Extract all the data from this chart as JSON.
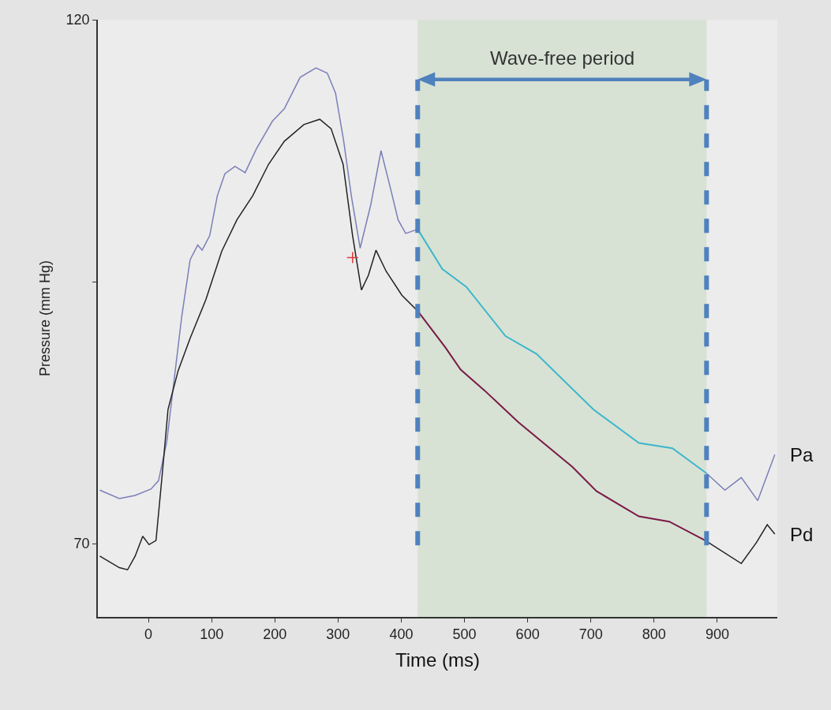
{
  "chart_data": {
    "type": "line",
    "xlabel": "Time (ms)",
    "ylabel": "Pressure (mm Hg)",
    "xlim": [
      -80,
      995
    ],
    "ylim": [
      63,
      120
    ],
    "xticks": [
      0,
      100,
      200,
      300,
      400,
      500,
      600,
      700,
      800,
      900
    ],
    "yticks": [
      70,
      {
        "value": 95,
        "label": null
      },
      120
    ],
    "grid": false,
    "legend": false,
    "line_style": "solid",
    "marker": "none",
    "series": [
      {
        "name": "Pa",
        "color": "#7b7fb8",
        "x": [
          -77,
          -46,
          -21,
          4,
          16,
          29,
          41,
          53,
          66,
          78,
          85,
          97,
          109,
          121,
          137,
          153,
          171,
          196,
          215,
          240,
          265,
          283,
          296,
          309,
          321,
          335,
          352,
          368,
          383,
          395,
          407,
          426,
          465,
          503,
          565,
          614,
          704,
          776,
          829,
          883,
          912,
          938,
          964,
          991
        ],
        "values": [
          75.1,
          74.3,
          74.6,
          75.2,
          76.0,
          79.7,
          85.8,
          91.8,
          97.1,
          98.5,
          98.0,
          99.4,
          103.2,
          105.3,
          106.0,
          105.4,
          107.7,
          110.3,
          111.5,
          114.5,
          115.4,
          114.9,
          113.0,
          108.4,
          103.2,
          98.2,
          102.4,
          107.5,
          103.9,
          100.9,
          99.6,
          100.0,
          null,
          null,
          null,
          null,
          null,
          null,
          null,
          76.7,
          75.1,
          76.3,
          74.1,
          78.5
        ]
      },
      {
        "color": "#3cb6cc",
        "x": [
          426,
          465,
          503,
          565,
          614,
          704,
          776,
          829,
          883
        ],
        "values": [
          100.0,
          96.2,
          94.5,
          89.8,
          88.1,
          82.8,
          79.6,
          79.1,
          76.7
        ]
      },
      {
        "name": "Pd",
        "color": "#222222",
        "x": [
          -77,
          -46,
          -33,
          -21,
          -9,
          1,
          12,
          22,
          31,
          47,
          66,
          91,
          116,
          140,
          165,
          190,
          215,
          246,
          271,
          289,
          308,
          323,
          331,
          337,
          348,
          360,
          376,
          401,
          426,
          470,
          494,
          532,
          585,
          671,
          709,
          776,
          824,
          881,
          938,
          962,
          979,
          991
        ],
        "values": [
          68.8,
          67.7,
          67.5,
          68.8,
          70.7,
          69.9,
          70.3,
          76.7,
          82.8,
          86.5,
          89.6,
          93.3,
          97.9,
          100.9,
          103.2,
          106.2,
          108.4,
          110.0,
          110.5,
          109.6,
          106.2,
          99.4,
          96.4,
          94.2,
          95.6,
          98.0,
          96.0,
          93.7,
          92.2,
          null,
          null,
          null,
          null,
          null,
          null,
          null,
          null,
          70.3,
          68.1,
          70.1,
          71.8,
          70.9
        ]
      },
      {
        "color": "#7a1a48",
        "x": [
          426,
          470,
          494,
          532,
          585,
          671,
          709,
          776,
          824,
          881
        ],
        "values": [
          92.2,
          88.7,
          86.6,
          84.6,
          81.6,
          77.3,
          75.0,
          72.6,
          72.1,
          70.3
        ]
      },
      {
        "type": "scatter",
        "color": "#e03a3a",
        "marker": "cross",
        "x": [
          323
        ],
        "values": [
          97.3
        ]
      }
    ],
    "bands": [
      {
        "axis": "x",
        "from": 426,
        "to": 883,
        "label": "Wave-free period",
        "color": "#c9dcc4"
      }
    ],
    "ref_lines": [
      {
        "axis": "x",
        "value": 426,
        "color": "#4f81bd",
        "line_style": "dashed"
      },
      {
        "axis": "x",
        "value": 883,
        "color": "#4f81bd",
        "line_style": "dashed"
      }
    ]
  }
}
